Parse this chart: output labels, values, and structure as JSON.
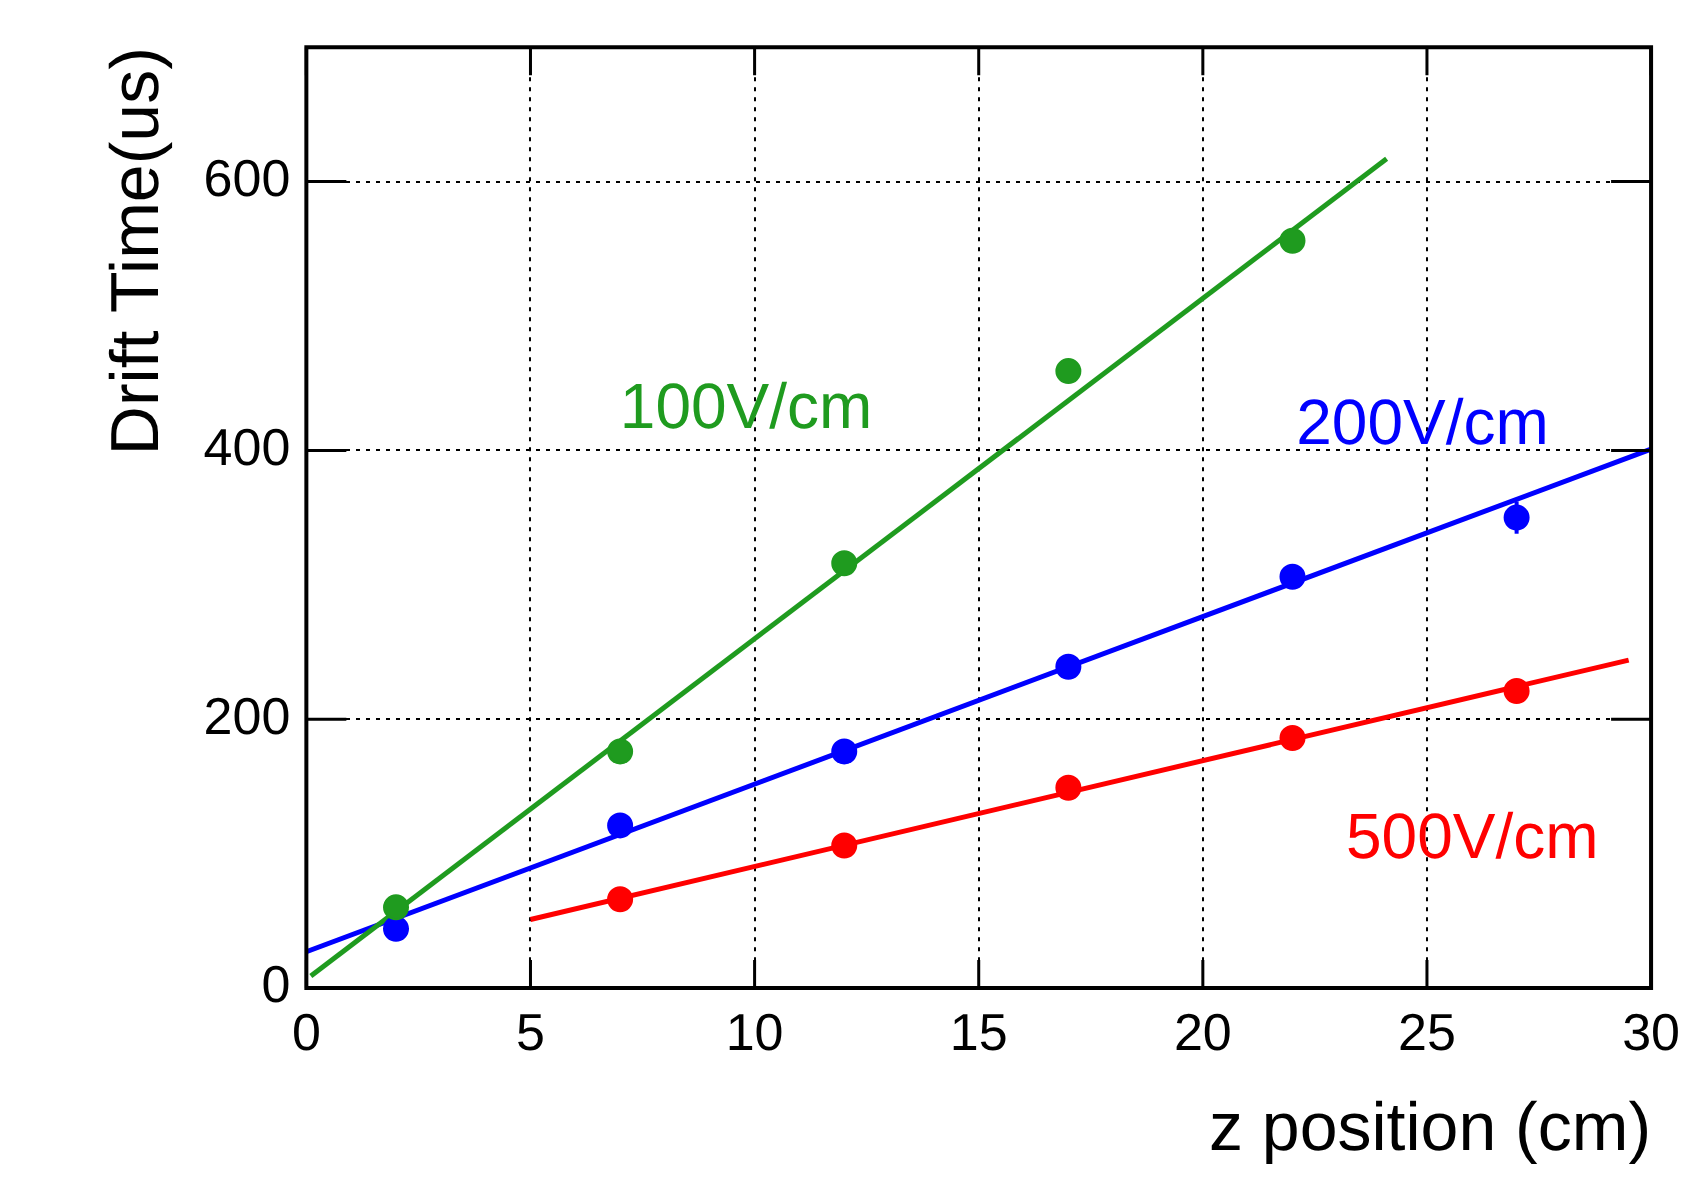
{
  "chart_data": {
    "type": "scatter",
    "xlabel": "z position (cm)",
    "ylabel": "Drift Time(us)",
    "xlim": [
      0,
      30
    ],
    "xticks": [
      0,
      5,
      10,
      15,
      20,
      25,
      30
    ],
    "ylim": [
      0,
      700
    ],
    "yticks": [
      0,
      200,
      400,
      600
    ],
    "grid": true,
    "legend": false,
    "marker": "circle",
    "series": [
      {
        "name": "100V/cm",
        "color": "#1f9b1f",
        "x": [
          2,
          7,
          12,
          17,
          22
        ],
        "values": [
          60,
          176,
          316,
          459,
          556
        ]
      },
      {
        "type": "line",
        "marker": "none",
        "color": "#1f9b1f",
        "x": [
          0.1,
          24.1
        ],
        "values": [
          9,
          617
        ]
      },
      {
        "name": "200V/cm",
        "color": "#0000ff",
        "x": [
          2,
          7,
          12,
          17,
          22,
          27
        ],
        "values": [
          44,
          121,
          176,
          239,
          306,
          350
        ],
        "errors": [
          null,
          null,
          null,
          null,
          null,
          12
        ]
      },
      {
        "type": "line",
        "marker": "none",
        "color": "#0000ff",
        "x": [
          0,
          30
        ],
        "values": [
          27,
          401
        ]
      },
      {
        "name": "500V/cm",
        "color": "#ff0000",
        "x": [
          7,
          12,
          17,
          22,
          27
        ],
        "values": [
          66,
          106,
          149,
          186,
          221
        ]
      },
      {
        "type": "line",
        "marker": "none",
        "color": "#ff0000",
        "x": [
          5,
          29.5
        ],
        "values": [
          51,
          244
        ]
      }
    ]
  }
}
